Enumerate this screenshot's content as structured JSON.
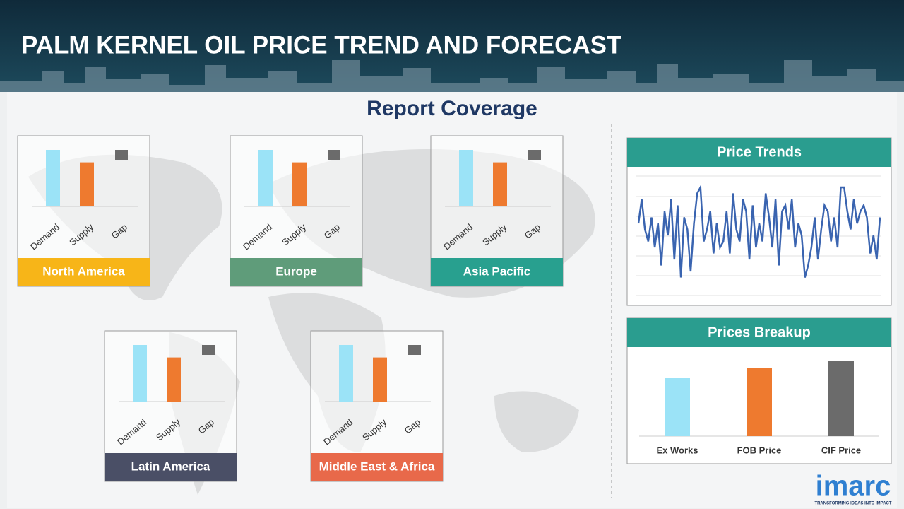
{
  "header": {
    "title": "PALM KERNEL OIL PRICE TREND AND FORECAST"
  },
  "section_title": "Report Coverage",
  "regions": [
    {
      "label": "North America",
      "color": "#f7b518",
      "categories": [
        "Demand",
        "Supply",
        "Gap"
      ],
      "values": [
        100,
        78,
        null
      ]
    },
    {
      "label": "Europe",
      "color": "#5f9c7a",
      "categories": [
        "Demand",
        "Supply",
        "Gap"
      ],
      "values": [
        100,
        78,
        null
      ]
    },
    {
      "label": "Asia Pacific",
      "color": "#28a08f",
      "categories": [
        "Demand",
        "Supply",
        "Gap"
      ],
      "values": [
        100,
        78,
        null
      ]
    },
    {
      "label": "Latin America",
      "color": "#4a4f66",
      "categories": [
        "Demand",
        "Supply",
        "Gap"
      ],
      "values": [
        100,
        78,
        null
      ]
    },
    {
      "label": "Middle East & Africa",
      "color": "#e8694a",
      "categories": [
        "Demand",
        "Supply",
        "Gap"
      ],
      "values": [
        100,
        78,
        null
      ]
    }
  ],
  "price_trends": {
    "title": "Price Trends",
    "color": "#3a64b0",
    "values": [
      60,
      80,
      55,
      45,
      65,
      40,
      60,
      25,
      70,
      50,
      80,
      30,
      75,
      15,
      65,
      55,
      20,
      60,
      85,
      90,
      45,
      55,
      70,
      35,
      60,
      40,
      45,
      70,
      35,
      85,
      55,
      45,
      80,
      70,
      30,
      75,
      40,
      60,
      45,
      85,
      65,
      40,
      80,
      25,
      70,
      75,
      55,
      80,
      40,
      60,
      50,
      15,
      25,
      40,
      65,
      30,
      55,
      75,
      70,
      45,
      65,
      40,
      90,
      90,
      70,
      55,
      80,
      60,
      70,
      75,
      65,
      35,
      50,
      30,
      65
    ]
  },
  "prices_breakup": {
    "title": "Prices Breakup",
    "categories": [
      "Ex Works",
      "FOB Price",
      "CIF Price"
    ],
    "values": [
      77,
      90,
      100
    ],
    "colors": [
      "#9be3f7",
      "#ee7a2f",
      "#6b6b6b"
    ]
  },
  "logo": {
    "name": "imarc",
    "tagline": "TRANSFORMING IDEAS INTO IMPACT"
  }
}
